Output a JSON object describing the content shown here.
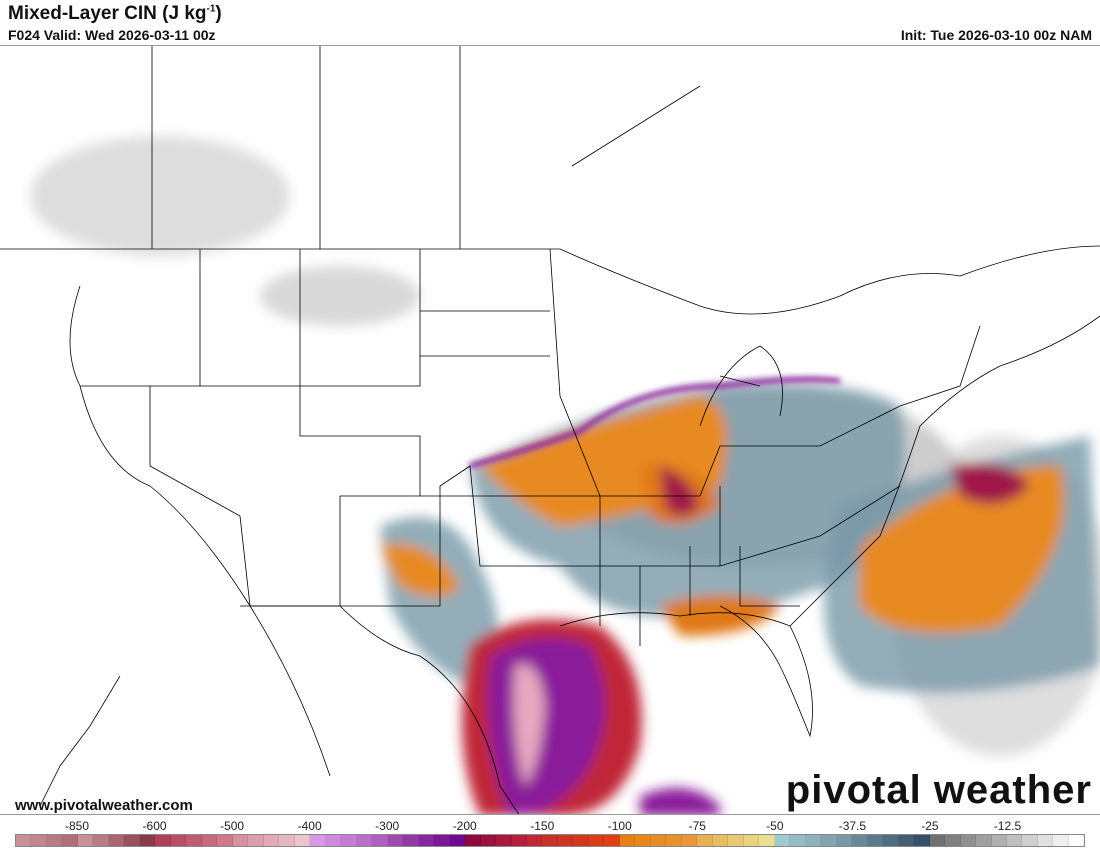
{
  "header": {
    "title": "Mixed-Layer CIN (J kg",
    "title_sup": "-1",
    "title_end": ")",
    "valid": "F024 Valid: Wed 2026-03-11 00z",
    "init": "Init: Tue 2026-03-10 00z NAM"
  },
  "footer": {
    "website": "www.pivotalweather.com",
    "logo": "pivotal weather"
  },
  "colorbar": {
    "ticks": [
      "-850",
      "-600",
      "-500",
      "-400",
      "-300",
      "-200",
      "-150",
      "-100",
      "-75",
      "-50",
      "-37.5",
      "-25",
      "-12.5"
    ],
    "stops": [
      "#c89098",
      "#8a3a4a",
      "#b04058",
      "#d07888",
      "#d890a0",
      "#ecc4cc",
      "#d898e8",
      "#b060c0",
      "#a048b0",
      "#700890",
      "#900840",
      "#c02838",
      "#c83028",
      "#e04010",
      "#e88010",
      "#e89838",
      "#e8b050",
      "#e8e090",
      "#a0c8d0",
      "#7898a8",
      "#688898",
      "#385068",
      "#707070",
      "#b0b0b0",
      "#c0c0c0",
      "#ffffff"
    ]
  },
  "colors": {
    "border": "#000000",
    "purple": "#8a1a9a",
    "red": "#c02838",
    "orange": "#e07818",
    "blue_gray": "#6a8a9a",
    "gray": "#a8a8a8",
    "pink": "#e8a8c0"
  }
}
